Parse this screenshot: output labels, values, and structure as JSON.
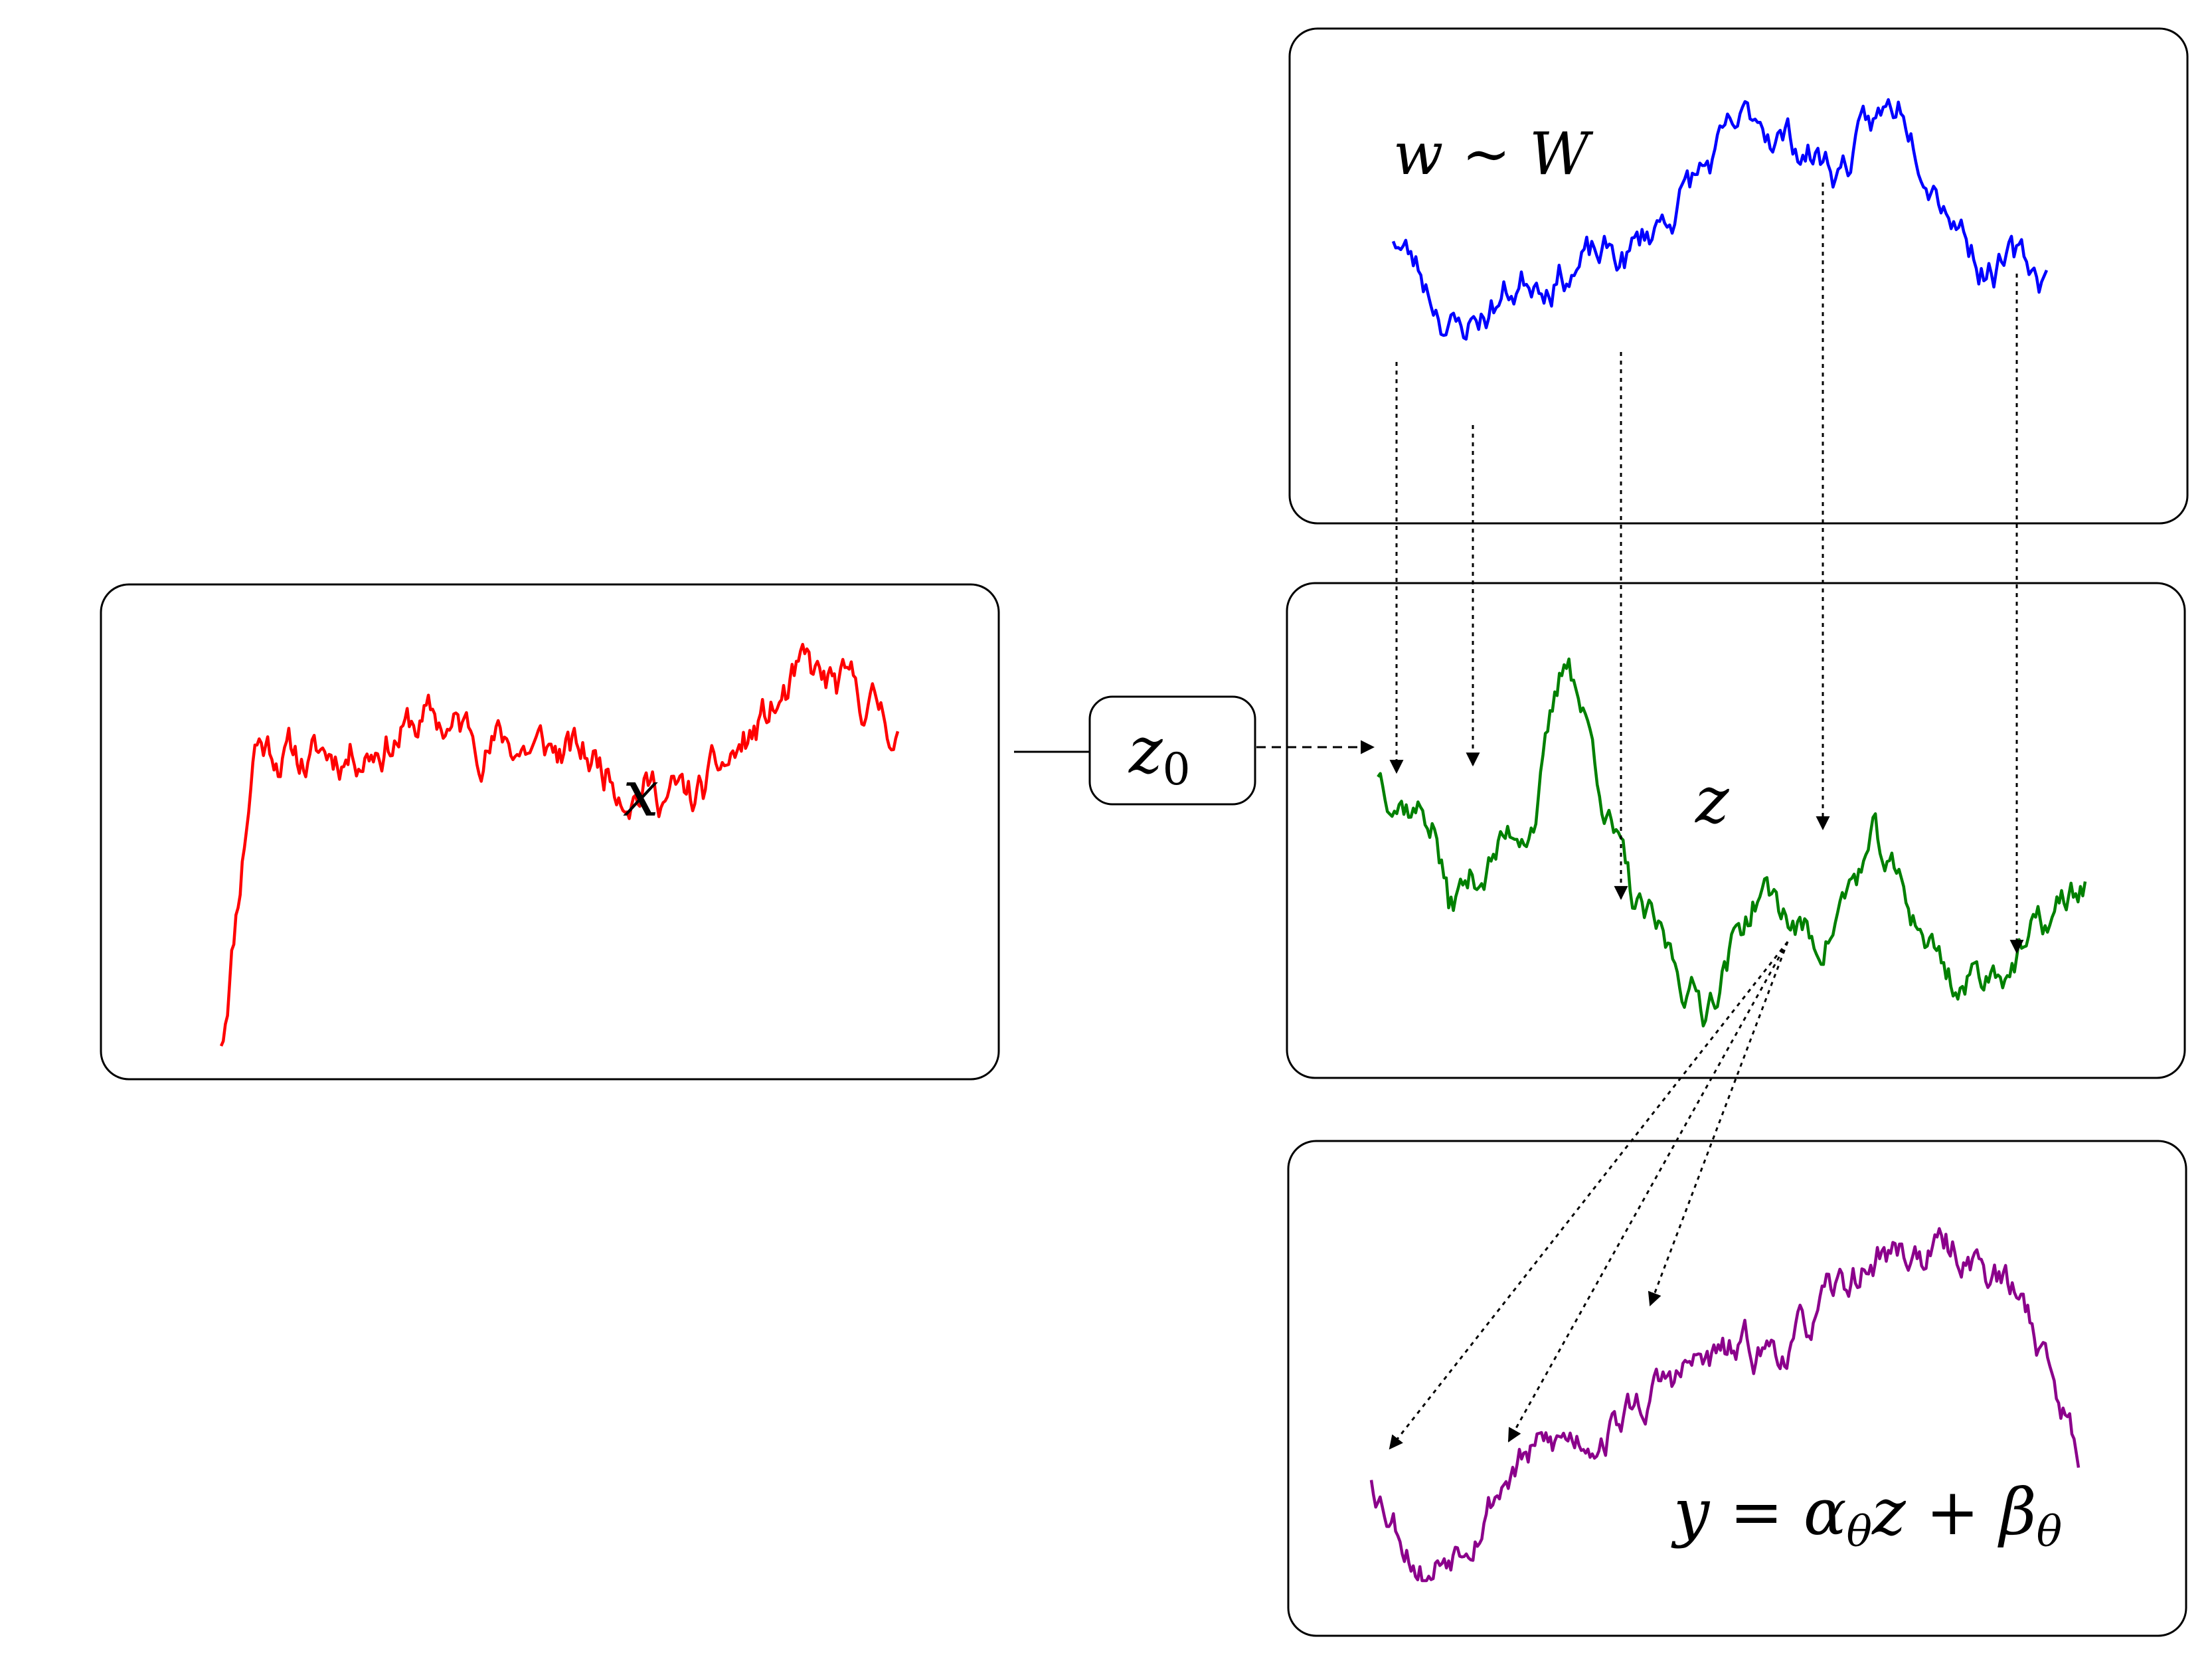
{
  "labels": {
    "x_panel": "x",
    "z0_box": {
      "main": "z",
      "sub": "0"
    },
    "w_panel": {
      "lhs": "w",
      "op": " ∼ ",
      "rhs": "W"
    },
    "z_panel": "z",
    "y_panel": {
      "lhs": "y",
      "eq": " = ",
      "alpha": "α",
      "alpha_sub": "θ",
      "z": "z",
      "plus": " + ",
      "beta": "β",
      "beta_sub": "θ"
    }
  },
  "colors": {
    "x_path": "#ff0000",
    "w_path": "#0000ff",
    "z_path": "#008000",
    "y_path": "#8b008b",
    "box_stroke": "#000000",
    "arrow": "#000000"
  },
  "paths": {
    "x": {
      "seed": 11,
      "n": 320,
      "shape": [
        [
          0,
          0
        ],
        [
          0.05,
          0.72
        ],
        [
          0.13,
          0.66
        ],
        [
          0.3,
          0.75
        ],
        [
          0.55,
          0.66
        ],
        [
          0.7,
          0.56
        ],
        [
          0.86,
          0.85
        ],
        [
          0.97,
          0.78
        ],
        [
          1,
          0.74
        ]
      ]
    },
    "w": {
      "seed": 23,
      "n": 260,
      "shape": [
        [
          0,
          0.62
        ],
        [
          0.1,
          0.34
        ],
        [
          0.22,
          0.52
        ],
        [
          0.36,
          0.55
        ],
        [
          0.45,
          0.75
        ],
        [
          0.56,
          0.95
        ],
        [
          0.68,
          0.8
        ],
        [
          0.78,
          1.0
        ],
        [
          0.9,
          0.55
        ],
        [
          1,
          0.5
        ]
      ]
    },
    "z": {
      "seed": 37,
      "n": 300,
      "shape": [
        [
          0,
          0.65
        ],
        [
          0.08,
          0.52
        ],
        [
          0.1,
          0.3
        ],
        [
          0.22,
          0.55
        ],
        [
          0.27,
          0.95
        ],
        [
          0.36,
          0.3
        ],
        [
          0.46,
          0.05
        ],
        [
          0.54,
          0.35
        ],
        [
          0.62,
          0.2
        ],
        [
          0.7,
          0.45
        ],
        [
          0.82,
          0.1
        ],
        [
          0.92,
          0.2
        ],
        [
          1,
          0.36
        ]
      ]
    },
    "y": {
      "seed": 53,
      "n": 320,
      "shape": [
        [
          0,
          0.28
        ],
        [
          0.08,
          0.02
        ],
        [
          0.2,
          0.3
        ],
        [
          0.35,
          0.42
        ],
        [
          0.45,
          0.55
        ],
        [
          0.6,
          0.62
        ],
        [
          0.72,
          0.85
        ],
        [
          0.85,
          0.85
        ],
        [
          0.93,
          0.7
        ],
        [
          1,
          0.34
        ]
      ]
    }
  }
}
